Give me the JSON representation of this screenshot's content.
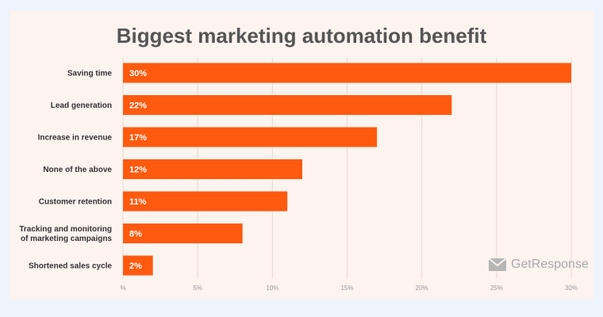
{
  "chart_data": {
    "type": "bar",
    "orientation": "horizontal",
    "title": "Biggest marketing automation benefit",
    "categories": [
      "Saving time",
      "Lead generation",
      "Increase in revenue",
      "None of the above",
      "Customer retention",
      [
        "Tracking and monitoring",
        "of marketing campaigns"
      ],
      "Shortened sales cycle"
    ],
    "values": [
      30,
      22,
      17,
      12,
      11,
      8,
      2
    ],
    "value_labels": [
      "30%",
      "22%",
      "17%",
      "12%",
      "11%",
      "8%",
      "2%"
    ],
    "xlim": [
      0,
      30
    ],
    "x_ticks": [
      0,
      5,
      10,
      15,
      20,
      25,
      30
    ],
    "x_tick_labels": [
      "%",
      "5%",
      "10%",
      "15%",
      "20%",
      "25%",
      "30%"
    ],
    "grid": true,
    "bar_color": "#ff5a0f",
    "grid_color": "#e6d8d2"
  },
  "brand": {
    "name": "GetResponse",
    "logo_icon": "envelope-icon"
  }
}
